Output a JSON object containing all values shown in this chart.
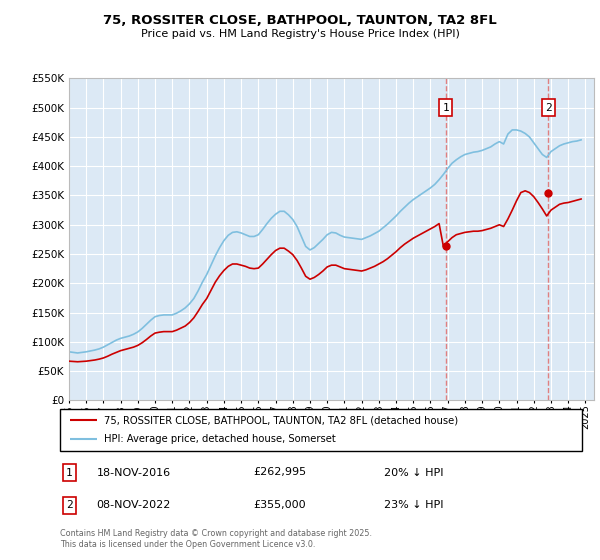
{
  "title": "75, ROSSITER CLOSE, BATHPOOL, TAUNTON, TA2 8FL",
  "subtitle": "Price paid vs. HM Land Registry's House Price Index (HPI)",
  "ylim": [
    0,
    550000
  ],
  "yticks": [
    0,
    50000,
    100000,
    150000,
    200000,
    250000,
    300000,
    350000,
    400000,
    450000,
    500000,
    550000
  ],
  "xmin": 1995,
  "xmax": 2025.5,
  "plot_bg": "#dce9f5",
  "grid_color": "#ffffff",
  "line_hpi_color": "#7fbfdf",
  "line_price_color": "#cc0000",
  "sale1_x": 2016.88,
  "sale1_y": 262995,
  "sale2_x": 2022.85,
  "sale2_y": 355000,
  "sale1_label": "1",
  "sale2_label": "2",
  "dashed_color": "#e08080",
  "legend1": "75, ROSSITER CLOSE, BATHPOOL, TAUNTON, TA2 8FL (detached house)",
  "legend2": "HPI: Average price, detached house, Somerset",
  "annotation1_date": "18-NOV-2016",
  "annotation1_price": "£262,995",
  "annotation1_hpi": "20% ↓ HPI",
  "annotation2_date": "08-NOV-2022",
  "annotation2_price": "£355,000",
  "annotation2_hpi": "23% ↓ HPI",
  "footnote": "Contains HM Land Registry data © Crown copyright and database right 2025.\nThis data is licensed under the Open Government Licence v3.0.",
  "hpi_data_x": [
    1995.0,
    1995.25,
    1995.5,
    1995.75,
    1996.0,
    1996.25,
    1996.5,
    1996.75,
    1997.0,
    1997.25,
    1997.5,
    1997.75,
    1998.0,
    1998.25,
    1998.5,
    1998.75,
    1999.0,
    1999.25,
    1999.5,
    1999.75,
    2000.0,
    2000.25,
    2000.5,
    2000.75,
    2001.0,
    2001.25,
    2001.5,
    2001.75,
    2002.0,
    2002.25,
    2002.5,
    2002.75,
    2003.0,
    2003.25,
    2003.5,
    2003.75,
    2004.0,
    2004.25,
    2004.5,
    2004.75,
    2005.0,
    2005.25,
    2005.5,
    2005.75,
    2006.0,
    2006.25,
    2006.5,
    2006.75,
    2007.0,
    2007.25,
    2007.5,
    2007.75,
    2008.0,
    2008.25,
    2008.5,
    2008.75,
    2009.0,
    2009.25,
    2009.5,
    2009.75,
    2010.0,
    2010.25,
    2010.5,
    2010.75,
    2011.0,
    2011.25,
    2011.5,
    2011.75,
    2012.0,
    2012.25,
    2012.5,
    2012.75,
    2013.0,
    2013.25,
    2013.5,
    2013.75,
    2014.0,
    2014.25,
    2014.5,
    2014.75,
    2015.0,
    2015.25,
    2015.5,
    2015.75,
    2016.0,
    2016.25,
    2016.5,
    2016.75,
    2017.0,
    2017.25,
    2017.5,
    2017.75,
    2018.0,
    2018.25,
    2018.5,
    2018.75,
    2019.0,
    2019.25,
    2019.5,
    2019.75,
    2020.0,
    2020.25,
    2020.5,
    2020.75,
    2021.0,
    2021.25,
    2021.5,
    2021.75,
    2022.0,
    2022.25,
    2022.5,
    2022.75,
    2023.0,
    2023.25,
    2023.5,
    2023.75,
    2024.0,
    2024.25,
    2024.5,
    2024.75
  ],
  "hpi_data_y": [
    83000,
    82000,
    81000,
    82000,
    83000,
    84500,
    86000,
    88000,
    91000,
    95000,
    99000,
    103000,
    106000,
    108000,
    110000,
    113000,
    117000,
    123000,
    130000,
    137000,
    143000,
    145000,
    146000,
    146000,
    146000,
    149000,
    153000,
    158000,
    165000,
    174000,
    187000,
    202000,
    215000,
    231000,
    247000,
    261000,
    273000,
    282000,
    287000,
    288000,
    286000,
    283000,
    280000,
    280000,
    283000,
    292000,
    302000,
    311000,
    318000,
    323000,
    323000,
    317000,
    309000,
    297000,
    280000,
    263000,
    257000,
    261000,
    268000,
    275000,
    283000,
    287000,
    286000,
    282000,
    279000,
    278000,
    277000,
    276000,
    275000,
    278000,
    281000,
    285000,
    289000,
    295000,
    301000,
    308000,
    315000,
    323000,
    330000,
    337000,
    343000,
    348000,
    353000,
    358000,
    363000,
    369000,
    377000,
    386000,
    396000,
    405000,
    411000,
    416000,
    420000,
    422000,
    424000,
    425000,
    427000,
    430000,
    433000,
    438000,
    442000,
    438000,
    455000,
    462000,
    462000,
    460000,
    456000,
    450000,
    440000,
    430000,
    420000,
    415000,
    425000,
    430000,
    435000,
    438000,
    440000,
    442000,
    443000,
    445000
  ],
  "price_data_x": [
    1995.0,
    1995.25,
    1995.5,
    1995.75,
    1996.0,
    1996.25,
    1996.5,
    1996.75,
    1997.0,
    1997.25,
    1997.5,
    1997.75,
    1998.0,
    1998.25,
    1998.5,
    1998.75,
    1999.0,
    1999.25,
    1999.5,
    1999.75,
    2000.0,
    2000.25,
    2000.5,
    2000.75,
    2001.0,
    2001.25,
    2001.5,
    2001.75,
    2002.0,
    2002.25,
    2002.5,
    2002.75,
    2003.0,
    2003.25,
    2003.5,
    2003.75,
    2004.0,
    2004.25,
    2004.5,
    2004.75,
    2005.0,
    2005.25,
    2005.5,
    2005.75,
    2006.0,
    2006.25,
    2006.5,
    2006.75,
    2007.0,
    2007.25,
    2007.5,
    2007.75,
    2008.0,
    2008.25,
    2008.5,
    2008.75,
    2009.0,
    2009.25,
    2009.5,
    2009.75,
    2010.0,
    2010.25,
    2010.5,
    2010.75,
    2011.0,
    2011.25,
    2011.5,
    2011.75,
    2012.0,
    2012.25,
    2012.5,
    2012.75,
    2013.0,
    2013.25,
    2013.5,
    2013.75,
    2014.0,
    2014.25,
    2014.5,
    2014.75,
    2015.0,
    2015.25,
    2015.5,
    2015.75,
    2016.0,
    2016.25,
    2016.5,
    2016.75,
    2017.0,
    2017.25,
    2017.5,
    2017.75,
    2018.0,
    2018.25,
    2018.5,
    2018.75,
    2019.0,
    2019.25,
    2019.5,
    2019.75,
    2020.0,
    2020.25,
    2020.5,
    2020.75,
    2021.0,
    2021.25,
    2021.5,
    2021.75,
    2022.0,
    2022.25,
    2022.5,
    2022.75,
    2023.0,
    2023.25,
    2023.5,
    2023.75,
    2024.0,
    2024.25,
    2024.5,
    2024.75
  ],
  "price_data_y": [
    67000,
    66500,
    66000,
    66500,
    67000,
    68000,
    69000,
    70500,
    72500,
    75500,
    79000,
    82000,
    85000,
    87000,
    89000,
    91000,
    94000,
    98500,
    104000,
    110000,
    115000,
    116500,
    117500,
    117500,
    117500,
    120000,
    123500,
    127000,
    133000,
    141000,
    152000,
    164000,
    174000,
    188000,
    202000,
    213000,
    222000,
    229000,
    233000,
    233000,
    231000,
    229000,
    226000,
    225000,
    226000,
    233000,
    241000,
    249000,
    256000,
    260000,
    260000,
    255000,
    249000,
    239000,
    226000,
    212000,
    207000,
    210000,
    215000,
    221000,
    228000,
    231000,
    231000,
    228000,
    225000,
    224000,
    223000,
    222000,
    221000,
    223000,
    226000,
    229000,
    233000,
    237000,
    242000,
    248000,
    254000,
    261000,
    267000,
    272000,
    277000,
    281000,
    285000,
    289000,
    293000,
    297000,
    302000,
    263000,
    271000,
    278000,
    283000,
    285000,
    287000,
    288000,
    289000,
    289000,
    290000,
    292000,
    294000,
    297000,
    300000,
    297000,
    310000,
    325000,
    341000,
    355000,
    358000,
    355000,
    348000,
    338000,
    327000,
    315000,
    325000,
    330000,
    335000,
    337000,
    338000,
    340000,
    342000,
    344000
  ]
}
